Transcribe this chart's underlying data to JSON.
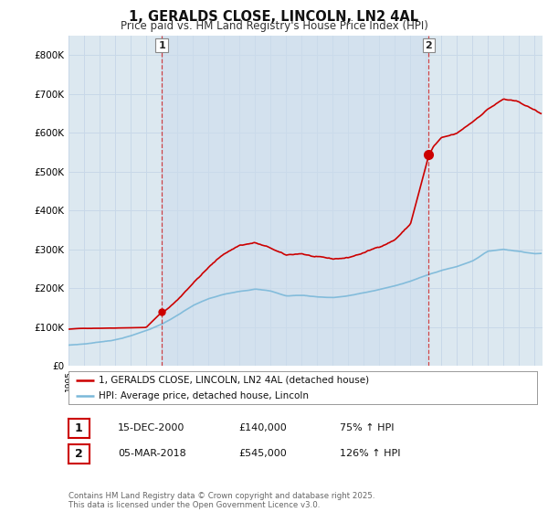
{
  "title": "1, GERALDS CLOSE, LINCOLN, LN2 4AL",
  "subtitle": "Price paid vs. HM Land Registry's House Price Index (HPI)",
  "ylim": [
    0,
    850000
  ],
  "xlim_start": 1995.0,
  "xlim_end": 2025.5,
  "hpi_color": "#7ab8d9",
  "price_color": "#cc0000",
  "grid_color": "#c8d8e8",
  "bg_color": "#dce8f0",
  "shade_color": "#ccdded",
  "sale1_year": 2001.0,
  "sale1_price": 140000,
  "sale2_year": 2018.17,
  "sale2_price": 545000,
  "legend_line1": "1, GERALDS CLOSE, LINCOLN, LN2 4AL (detached house)",
  "legend_line2": "HPI: Average price, detached house, Lincoln",
  "table_row1": [
    "1",
    "15-DEC-2000",
    "£140,000",
    "75% ↑ HPI"
  ],
  "table_row2": [
    "2",
    "05-MAR-2018",
    "£545,000",
    "126% ↑ HPI"
  ],
  "footer": "Contains HM Land Registry data © Crown copyright and database right 2025.\nThis data is licensed under the Open Government Licence v3.0.",
  "yticks": [
    0,
    100000,
    200000,
    300000,
    400000,
    500000,
    600000,
    700000,
    800000
  ],
  "ytick_labels": [
    "£0",
    "£100K",
    "£200K",
    "£300K",
    "£400K",
    "£500K",
    "£600K",
    "£700K",
    "£800K"
  ]
}
